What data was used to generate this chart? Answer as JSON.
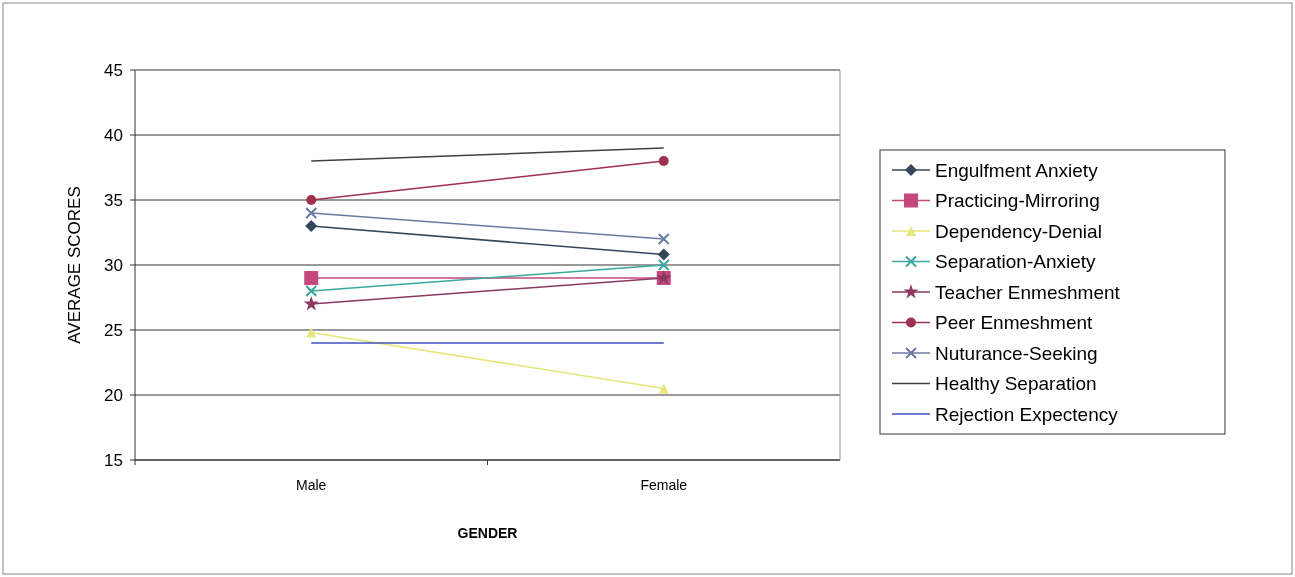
{
  "chart_data": {
    "type": "line",
    "xlabel": "GENDER",
    "ylabel": "AVERAGE SCORES",
    "categories": [
      "Male",
      "Female"
    ],
    "ylim": [
      15,
      45
    ],
    "yticks": [
      15,
      20,
      25,
      30,
      35,
      40,
      45
    ],
    "grid": "y",
    "legend": "right",
    "series": [
      {
        "name": "Engulfment Anxiety",
        "color": "#34475a",
        "marker": "diamond",
        "values": [
          33,
          30.8
        ]
      },
      {
        "name": "Practicing-Mirroring",
        "color": "#c4487c",
        "marker": "square",
        "values": [
          29,
          29
        ]
      },
      {
        "name": "Dependency-Denial",
        "color": "#e6e67a",
        "marker": "triangle",
        "values": [
          24.8,
          20.5
        ]
      },
      {
        "name": "Separation-Anxiety",
        "color": "#3aa8a0",
        "marker": "cross",
        "values": [
          28,
          30
        ]
      },
      {
        "name": "Teacher Enmeshment",
        "color": "#8a3a5e",
        "marker": "star",
        "values": [
          27,
          29
        ]
      },
      {
        "name": "Peer Enmeshment",
        "color": "#a03050",
        "marker": "circle",
        "values": [
          35,
          38
        ]
      },
      {
        "name": "Nuturance-Seeking",
        "color": "#6a7aa0",
        "marker": "cross",
        "values": [
          34,
          32
        ]
      },
      {
        "name": "Healthy Separation",
        "color": "#404040",
        "marker": "none",
        "values": [
          38,
          39
        ]
      },
      {
        "name": "Rejection Expectency",
        "color": "#4050c0",
        "marker": "none",
        "values": [
          24,
          24
        ]
      }
    ]
  }
}
